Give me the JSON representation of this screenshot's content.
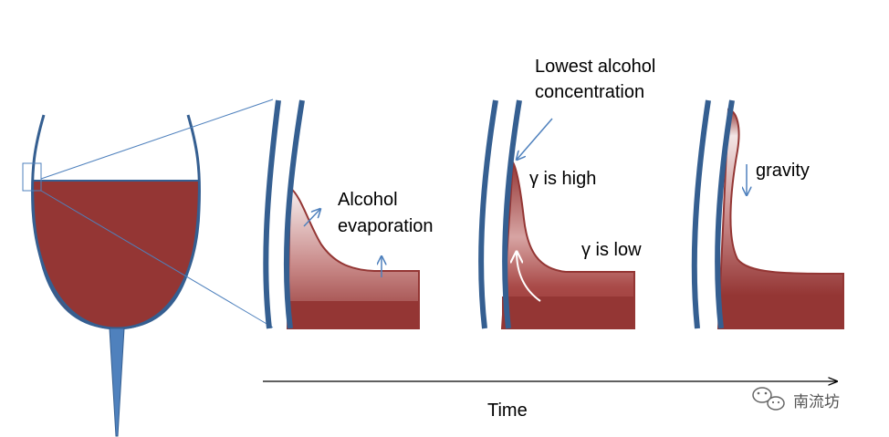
{
  "labels": {
    "alcohol_evaporation_line1": "Alcohol",
    "alcohol_evaporation_line2": "evaporation",
    "lowest_concentration_line1": "Lowest alcohol",
    "lowest_concentration_line2": "concentration",
    "gamma_high": "γ is high",
    "gamma_low": "γ is low",
    "gravity": "gravity",
    "time_axis": "Time"
  },
  "watermark": {
    "text": "南流坊",
    "icon": "wechat-icon"
  },
  "colors": {
    "wine": "#943634",
    "glass_wall": "#355F91",
    "stem": "#4F81BD",
    "arrow": "#4F81BD",
    "zoom_lines": "#4F81BD"
  }
}
